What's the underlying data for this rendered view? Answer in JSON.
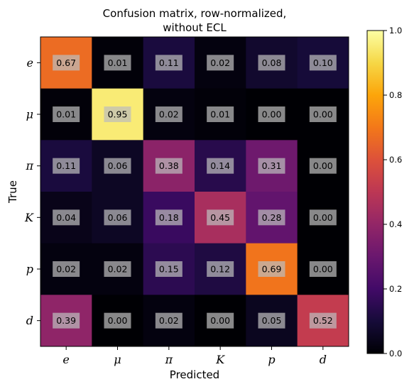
{
  "chart_data": {
    "type": "heatmap",
    "title": "Confusion matrix, row-normalized,",
    "subtitle": "without ECL",
    "xlabel": "Predicted",
    "ylabel": "True",
    "x_categories": [
      "e",
      "μ",
      "π",
      "K",
      "p",
      "d"
    ],
    "y_categories": [
      "e",
      "μ",
      "π",
      "K",
      "p",
      "d"
    ],
    "values": [
      [
        0.67,
        0.01,
        0.11,
        0.02,
        0.08,
        0.1
      ],
      [
        0.01,
        0.95,
        0.02,
        0.01,
        0.0,
        0.0
      ],
      [
        0.11,
        0.06,
        0.38,
        0.14,
        0.31,
        0.0
      ],
      [
        0.04,
        0.06,
        0.18,
        0.45,
        0.28,
        0.0
      ],
      [
        0.02,
        0.02,
        0.15,
        0.12,
        0.69,
        0.0
      ],
      [
        0.39,
        0.0,
        0.02,
        0.0,
        0.05,
        0.52
      ]
    ],
    "value_labels": [
      [
        "0.67",
        "0.01",
        "0.11",
        "0.02",
        "0.08",
        "0.10"
      ],
      [
        "0.01",
        "0.95",
        "0.02",
        "0.01",
        "0.00",
        "0.00"
      ],
      [
        "0.11",
        "0.06",
        "0.38",
        "0.14",
        "0.31",
        "0.00"
      ],
      [
        "0.04",
        "0.06",
        "0.18",
        "0.45",
        "0.28",
        "0.00"
      ],
      [
        "0.02",
        "0.02",
        "0.15",
        "0.12",
        "0.69",
        "0.00"
      ],
      [
        "0.39",
        "0.00",
        "0.02",
        "0.00",
        "0.05",
        "0.52"
      ]
    ],
    "colormap": "inferno",
    "colorbar": {
      "range": [
        0.0,
        1.0
      ],
      "ticks": [
        "0.0",
        "0.2",
        "0.4",
        "0.6",
        "0.8",
        "1.0"
      ]
    },
    "colors": {
      "cell_label_box": "#bdbdbd",
      "cell_label_box_opacity": 0.72
    }
  }
}
